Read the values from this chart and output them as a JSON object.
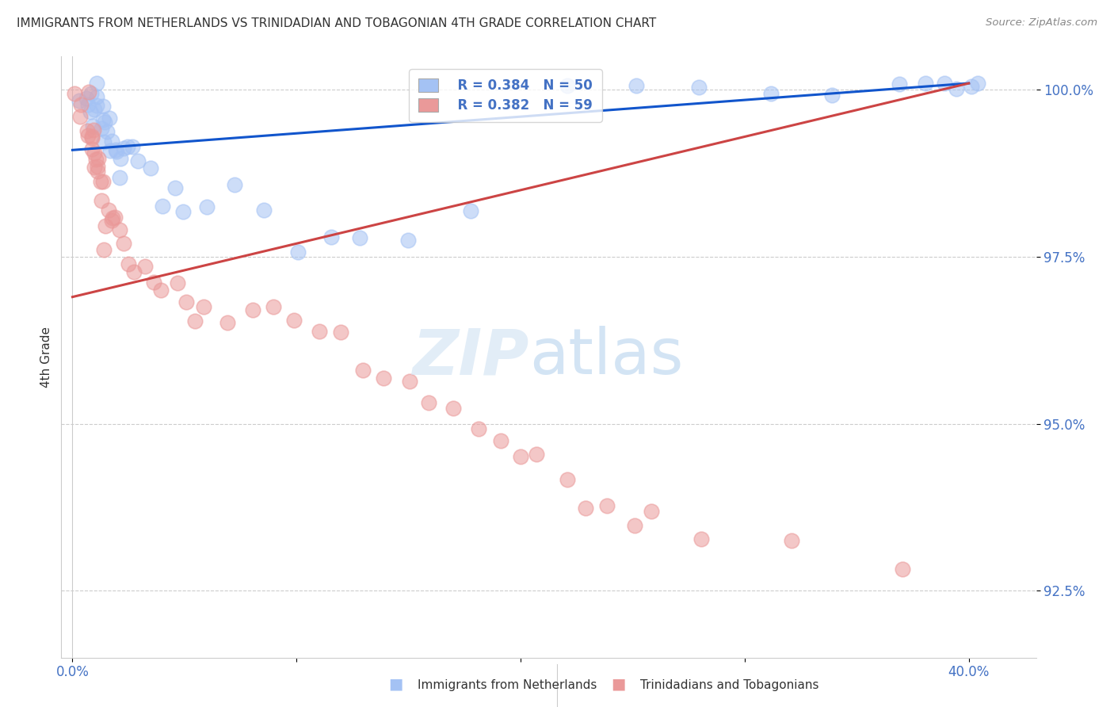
{
  "title": "IMMIGRANTS FROM NETHERLANDS VS TRINIDADIAN AND TOBAGONIAN 4TH GRADE CORRELATION CHART",
  "source": "Source: ZipAtlas.com",
  "ylabel_label": "4th Grade",
  "ytick_values": [
    0.925,
    0.95,
    0.975,
    1.0
  ],
  "ytick_labels": [
    "92.5%",
    "95.0%",
    "97.5%",
    "100.0%"
  ],
  "xtick_values": [
    0.0,
    0.1,
    0.2,
    0.3,
    0.4
  ],
  "xtick_labels": [
    "0.0%",
    "",
    "",
    "",
    "40.0%"
  ],
  "legend_blue_r": "R = 0.384",
  "legend_blue_n": "N = 50",
  "legend_pink_r": "R = 0.382",
  "legend_pink_n": "N = 59",
  "legend_blue_label": "Immigrants from Netherlands",
  "legend_pink_label": "Trinidadians and Tobagonians",
  "blue_color": "#a4c2f4",
  "pink_color": "#ea9999",
  "blue_line_color": "#1155cc",
  "pink_line_color": "#cc4444",
  "blue_line_x0": 0.0,
  "blue_line_y0": 0.991,
  "blue_line_x1": 0.4,
  "blue_line_y1": 1.001,
  "pink_line_x0": 0.0,
  "pink_line_y0": 0.969,
  "pink_line_x1": 0.4,
  "pink_line_y1": 1.001,
  "xlim": [
    -0.005,
    0.43
  ],
  "ylim": [
    0.915,
    1.005
  ],
  "blue_x": [
    0.003,
    0.005,
    0.006,
    0.007,
    0.008,
    0.009,
    0.01,
    0.01,
    0.011,
    0.012,
    0.013,
    0.013,
    0.014,
    0.014,
    0.015,
    0.015,
    0.016,
    0.017,
    0.018,
    0.019,
    0.02,
    0.021,
    0.022,
    0.023,
    0.025,
    0.027,
    0.03,
    0.035,
    0.04,
    0.045,
    0.05,
    0.06,
    0.07,
    0.085,
    0.1,
    0.115,
    0.13,
    0.15,
    0.18,
    0.22,
    0.25,
    0.28,
    0.31,
    0.34,
    0.37,
    0.38,
    0.39,
    0.395,
    0.4,
    0.405
  ],
  "blue_y": [
    0.999,
    0.998,
    0.998,
    0.998,
    0.997,
    0.997,
    0.997,
    0.998,
    0.996,
    0.996,
    0.995,
    0.996,
    0.995,
    0.994,
    0.994,
    0.995,
    0.993,
    0.993,
    0.993,
    0.992,
    0.992,
    0.991,
    0.991,
    0.99,
    0.99,
    0.989,
    0.988,
    0.987,
    0.986,
    0.985,
    0.984,
    0.983,
    0.983,
    0.982,
    0.981,
    0.98,
    0.979,
    0.978,
    0.98,
    0.999,
    0.999,
    1.0,
    1.0,
    1.0,
    1.0,
    1.0,
    1.0,
    1.0,
    1.0,
    1.0
  ],
  "pink_x": [
    0.002,
    0.003,
    0.004,
    0.005,
    0.006,
    0.007,
    0.007,
    0.008,
    0.008,
    0.009,
    0.009,
    0.01,
    0.01,
    0.011,
    0.011,
    0.012,
    0.012,
    0.013,
    0.013,
    0.014,
    0.015,
    0.015,
    0.016,
    0.017,
    0.018,
    0.02,
    0.022,
    0.025,
    0.028,
    0.032,
    0.036,
    0.04,
    0.045,
    0.05,
    0.055,
    0.06,
    0.07,
    0.08,
    0.09,
    0.1,
    0.11,
    0.12,
    0.13,
    0.14,
    0.15,
    0.16,
    0.17,
    0.18,
    0.19,
    0.2,
    0.21,
    0.22,
    0.23,
    0.24,
    0.25,
    0.26,
    0.28,
    0.32,
    0.37
  ],
  "pink_y": [
    0.999,
    0.998,
    0.997,
    0.996,
    0.995,
    0.994,
    0.993,
    0.993,
    0.992,
    0.992,
    0.991,
    0.99,
    0.99,
    0.989,
    0.988,
    0.988,
    0.987,
    0.986,
    0.985,
    0.984,
    0.983,
    0.982,
    0.981,
    0.98,
    0.979,
    0.978,
    0.977,
    0.976,
    0.975,
    0.974,
    0.973,
    0.972,
    0.971,
    0.97,
    0.969,
    0.968,
    0.967,
    0.966,
    0.965,
    0.964,
    0.963,
    0.961,
    0.96,
    0.958,
    0.956,
    0.954,
    0.952,
    0.95,
    0.948,
    0.946,
    0.944,
    0.942,
    0.94,
    0.938,
    0.936,
    0.934,
    0.932,
    0.93,
    0.928
  ]
}
